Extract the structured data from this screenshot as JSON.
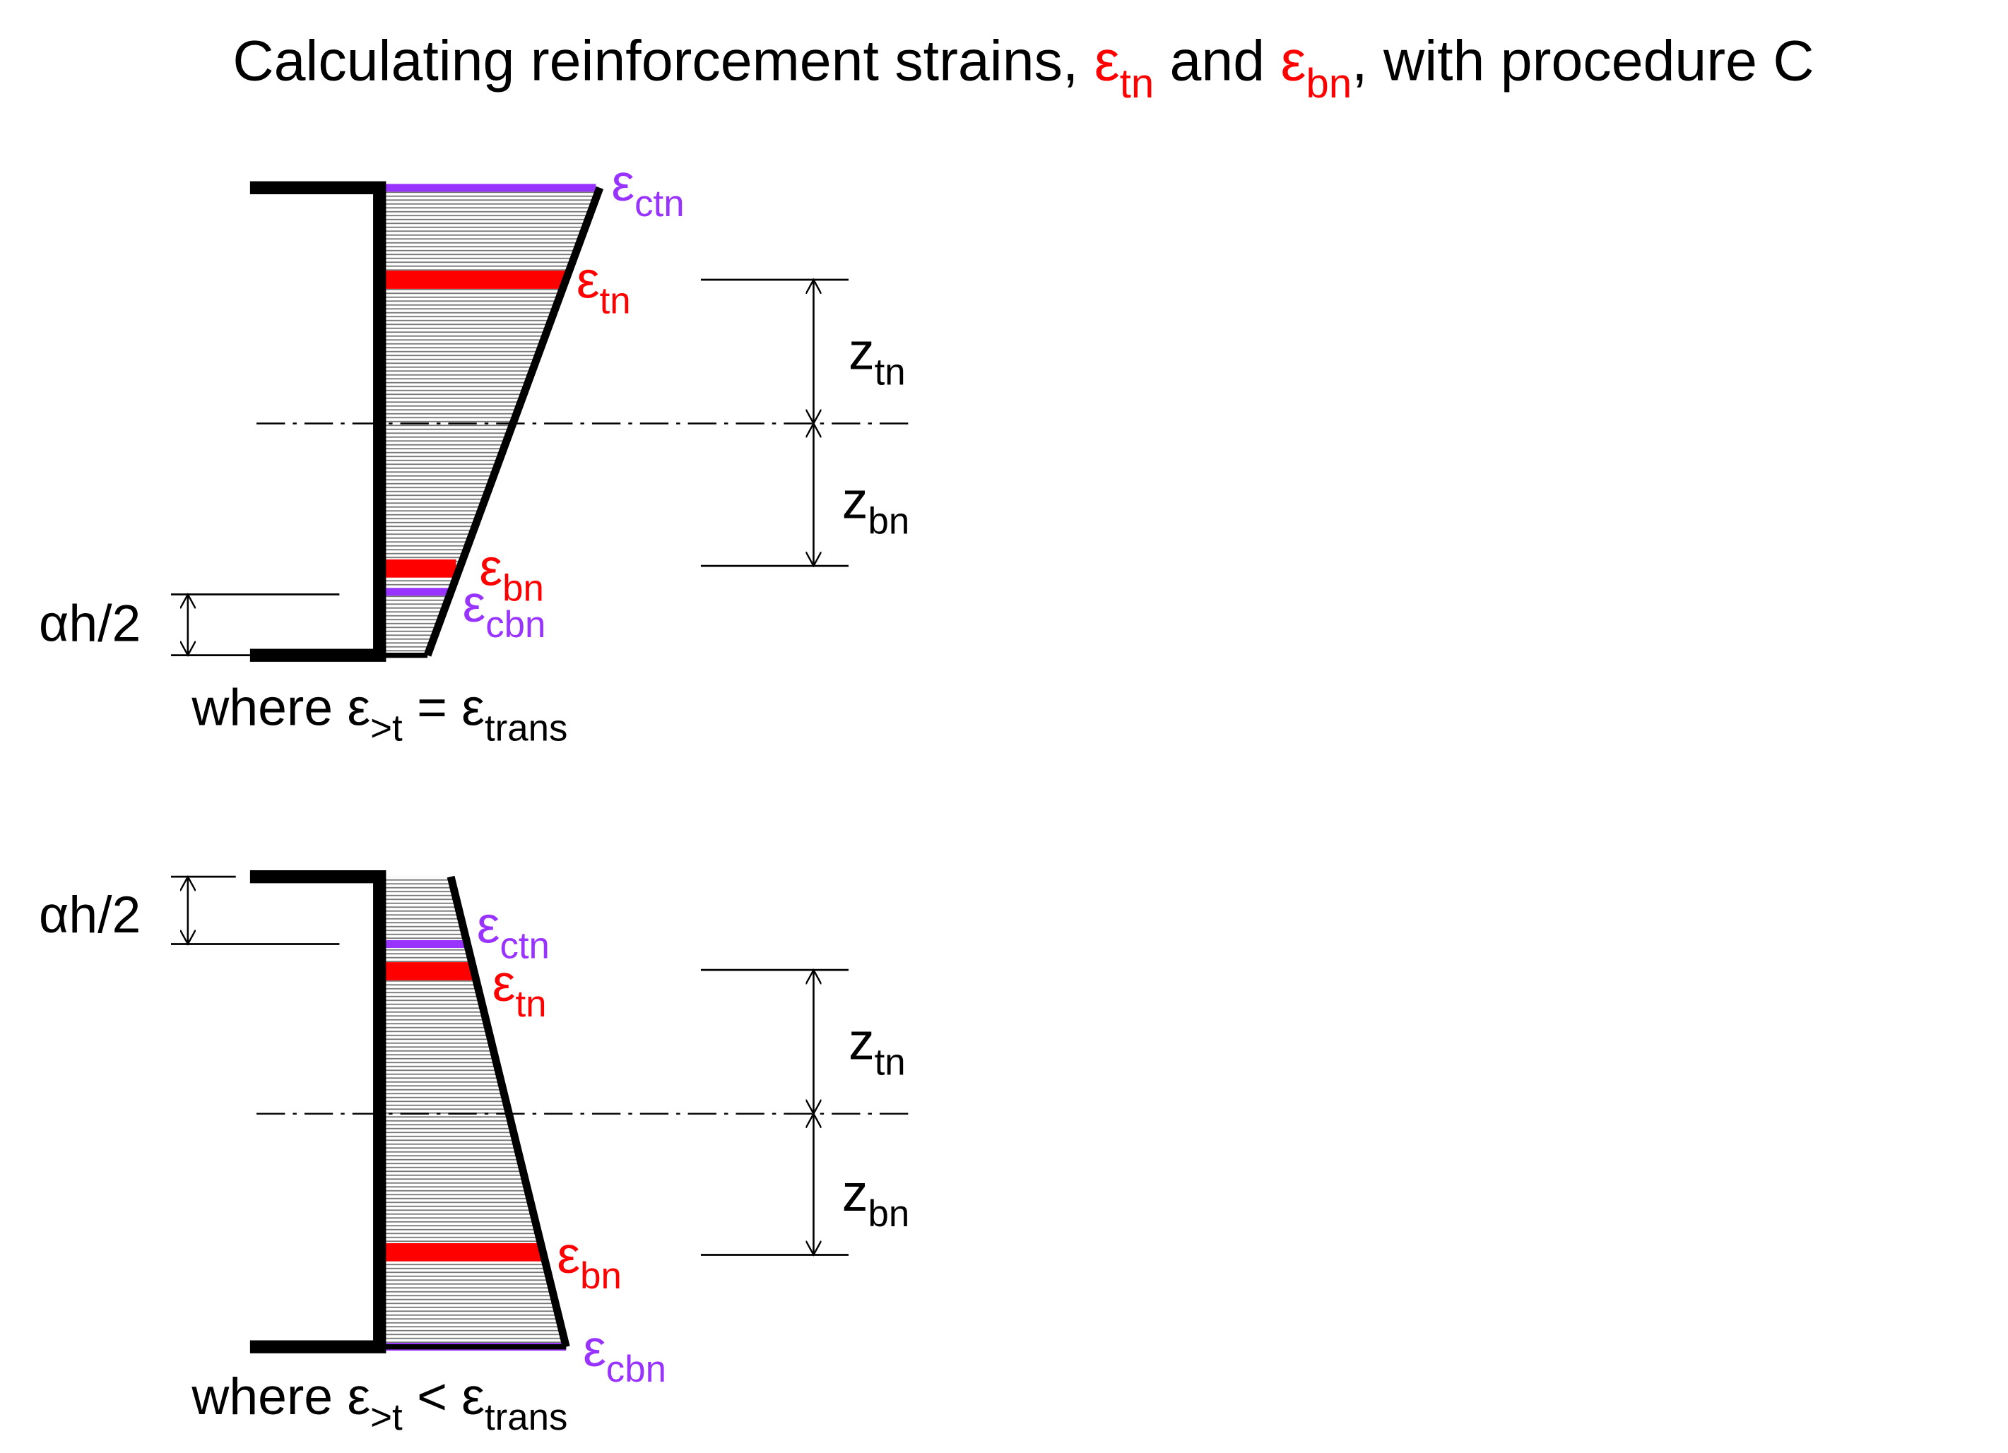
{
  "title": {
    "text1": "Calculating reinforcement strains, ",
    "eps1": "ε",
    "sub1": "tn",
    "text2": " and ",
    "eps2": "ε",
    "sub2": "bn",
    "text3": ", with procedure C"
  },
  "diagrams": [
    {
      "labels": {
        "top_concrete": {
          "symbol": "ε",
          "sub": "ctn"
        },
        "top_steel": {
          "symbol": "ε",
          "sub": "tn"
        },
        "bottom_steel": {
          "symbol": "ε",
          "sub": "bn"
        },
        "bottom_concrete": {
          "symbol": "ε",
          "sub": "cbn"
        }
      },
      "z_top": {
        "symbol": "z",
        "sub": "tn"
      },
      "z_bottom": {
        "symbol": "z",
        "sub": "bn"
      },
      "offset_label": "αh/2",
      "caption": {
        "prefix": "where ",
        "symbol": "ε",
        "sub": ">t",
        "relation": " = ",
        "symbol2": "ε",
        "sub2": "trans"
      }
    },
    {
      "labels": {
        "top_concrete": {
          "symbol": "ε",
          "sub": "ctn"
        },
        "top_steel": {
          "symbol": "ε",
          "sub": "tn"
        },
        "bottom_steel": {
          "symbol": "ε",
          "sub": "bn"
        },
        "bottom_concrete": {
          "symbol": "ε",
          "sub": "cbn"
        }
      },
      "z_top": {
        "symbol": "z",
        "sub": "tn"
      },
      "z_bottom": {
        "symbol": "z",
        "sub": "bn"
      },
      "offset_label": "αh/2",
      "caption": {
        "prefix": "where ",
        "symbol": "ε",
        "sub": ">t",
        "relation": " < ",
        "symbol2": "ε",
        "sub2": "trans"
      }
    }
  ]
}
